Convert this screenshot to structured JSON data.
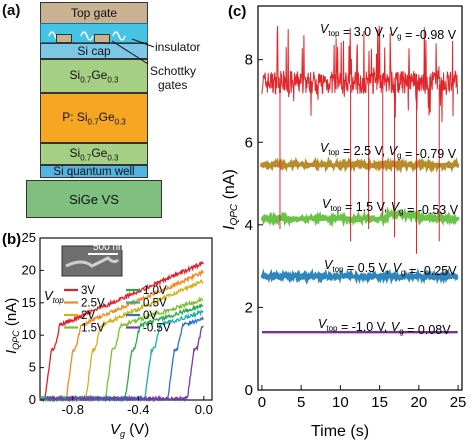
{
  "panel_a": {
    "letter": "(a)",
    "layers": {
      "top_gate": "Top gate",
      "si_cap": "Si  cap",
      "sige_1": "Si0.7Ge0.3",
      "p_sige": "P: Si0.7Ge0.3",
      "sige_2": "Si0.7Ge0.3",
      "si_qw": "Si quantum well",
      "sige_vs": "SiGe VS"
    },
    "callouts": {
      "insulator": "insulator",
      "schottky_1": "Schottky",
      "schottky_2": "gates"
    },
    "colors": {
      "top_gate": "#c9b291",
      "insulator": "#46c4e6",
      "si_cap": "#7ec6e6",
      "sige": "#a6cf86",
      "p_sige": "#f6a623",
      "si_qw": "#52b4e0",
      "sige_vs": "#7fbf7f",
      "schottky_gate": "#c9b291"
    }
  },
  "panel_b": {
    "letter": "(b)",
    "inset_scale": "500 nm",
    "legend_title": "V",
    "legend_title_sub": "top",
    "chart_data": {
      "type": "line",
      "xlabel": "V",
      "xlabel_sub": "g",
      "xlabel_unit": " (V)",
      "ylabel": "I",
      "ylabel_sub": "QPC",
      "ylabel_unit": " (nA)",
      "xlim": [
        -1.0,
        0.05
      ],
      "ylim": [
        0,
        25
      ],
      "xticks": [
        "-0.8",
        "-0.4",
        "0.0"
      ],
      "xtick_values": [
        -0.8,
        -0.4,
        0.0
      ],
      "yticks": [
        "0",
        "5",
        "10",
        "15",
        "20",
        "25"
      ],
      "ytick_values": [
        0,
        5,
        10,
        15,
        20,
        25
      ],
      "series": [
        {
          "name": "3V",
          "color": "#e0202a",
          "onset": -0.97
        },
        {
          "name": "2.5V",
          "color": "#f08a1c",
          "onset": -0.84
        },
        {
          "name": "2V",
          "color": "#cfb21a",
          "onset": -0.72
        },
        {
          "name": "1.5V",
          "color": "#7cc12d",
          "onset": -0.6
        },
        {
          "name": "1.0V",
          "color": "#2aa84a",
          "onset": -0.48
        },
        {
          "name": "0.5V",
          "color": "#1fb0a6",
          "onset": -0.36
        },
        {
          "name": "0V",
          "color": "#2b74c9",
          "onset": -0.22
        },
        {
          "name": "-0.5V",
          "color": "#7a3aa8",
          "onset": -0.1
        }
      ]
    }
  },
  "panel_c": {
    "letter": "(c)",
    "chart_data": {
      "type": "line",
      "xlabel": "Time (s)",
      "ylabel": "I",
      "ylabel_sub": "QPC",
      "ylabel_unit": " (nA)",
      "xlim": [
        -0.5,
        25.5
      ],
      "ylim": [
        0,
        9.3
      ],
      "xticks": [
        "0",
        "5",
        "10",
        "15",
        "20",
        "25"
      ],
      "xtick_values": [
        0,
        5,
        10,
        15,
        20,
        25
      ],
      "yticks": [
        "0",
        "2",
        "4",
        "6",
        "8"
      ],
      "ytick_values": [
        0,
        2,
        4,
        6,
        8
      ],
      "series": [
        {
          "vtop": "3.0 V",
          "vg": "-0.98 V",
          "color": "#e0262b",
          "mean": 7.45,
          "noise": 0.28
        },
        {
          "vtop": "2.5 V",
          "vg": "-0.79 V",
          "color": "#b98c2a",
          "mean": 5.45,
          "noise": 0.05
        },
        {
          "vtop": "1.5 V",
          "vg": "-0.53 V",
          "color": "#6cc34a",
          "mean": 4.15,
          "noise": 0.05
        },
        {
          "vtop": "0.5 V",
          "vg": "-0.25V",
          "color": "#2e86bd",
          "mean": 2.75,
          "noise": 0.04
        },
        {
          "vtop": "-1.0 V",
          "vg": "0.08V",
          "color": "#7a2f9c",
          "mean": 1.4,
          "noise": 0.0
        }
      ],
      "spikes": [
        {
          "t": 2.3,
          "low": 3.9
        },
        {
          "t": 11.3,
          "low": 3.6
        },
        {
          "t": 13.6,
          "low": 3.9
        },
        {
          "t": 15.4,
          "low": 4.2
        },
        {
          "t": 16.9,
          "low": 3.7
        },
        {
          "t": 19.7,
          "low": 3.3
        },
        {
          "t": 22.6,
          "low": 3.6
        }
      ]
    }
  }
}
